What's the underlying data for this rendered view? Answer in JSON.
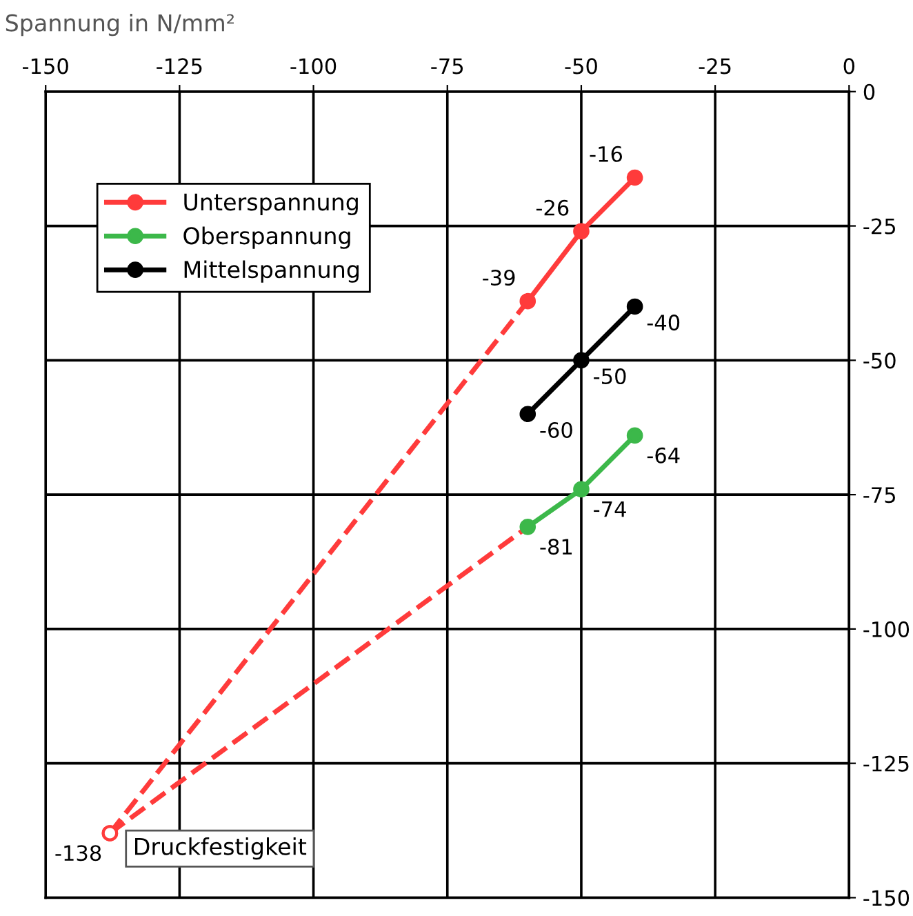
{
  "chart_data": {
    "type": "line",
    "ylabel": "Spannung in N/mm²",
    "xlim": [
      -150,
      0
    ],
    "xticks": [
      -150,
      -125,
      -100,
      -75,
      -50,
      -25,
      0
    ],
    "ylim": [
      -150,
      0
    ],
    "yticks": [
      -150,
      -125,
      -100,
      -75,
      -50,
      -25,
      0
    ],
    "grid": true,
    "legend": "top left",
    "marker": "circle",
    "data_labels": true,
    "series": [
      {
        "name": "Unterspannung",
        "color": "#ff3b3b",
        "x": [
          -60,
          -50,
          -40
        ],
        "values": [
          -39,
          -26,
          -16
        ]
      },
      {
        "name": "Oberspannung",
        "color": "#3cb84a",
        "x": [
          -60,
          -50,
          -40
        ],
        "values": [
          -81,
          -74,
          -64
        ]
      },
      {
        "name": "Mittelspannung",
        "color": "#000000",
        "x": [
          -60,
          -50,
          -40
        ],
        "values": [
          -60,
          -50,
          -40
        ]
      },
      {
        "color": "#ff3b3b",
        "x": [
          -138,
          -60
        ],
        "values": [
          -138,
          -39
        ],
        "line_style": "dashed",
        "value_labels": [
          "-138",
          null
        ]
      },
      {
        "color": "#ff3b3b",
        "x": [
          -138,
          -60
        ],
        "values": [
          -138,
          -81
        ],
        "line_style": "dashed",
        "value_labels": [
          null,
          null
        ]
      }
    ],
    "annotations": [
      {
        "text": "Druckfestigkeit",
        "x": -138,
        "y": -138
      }
    ]
  }
}
